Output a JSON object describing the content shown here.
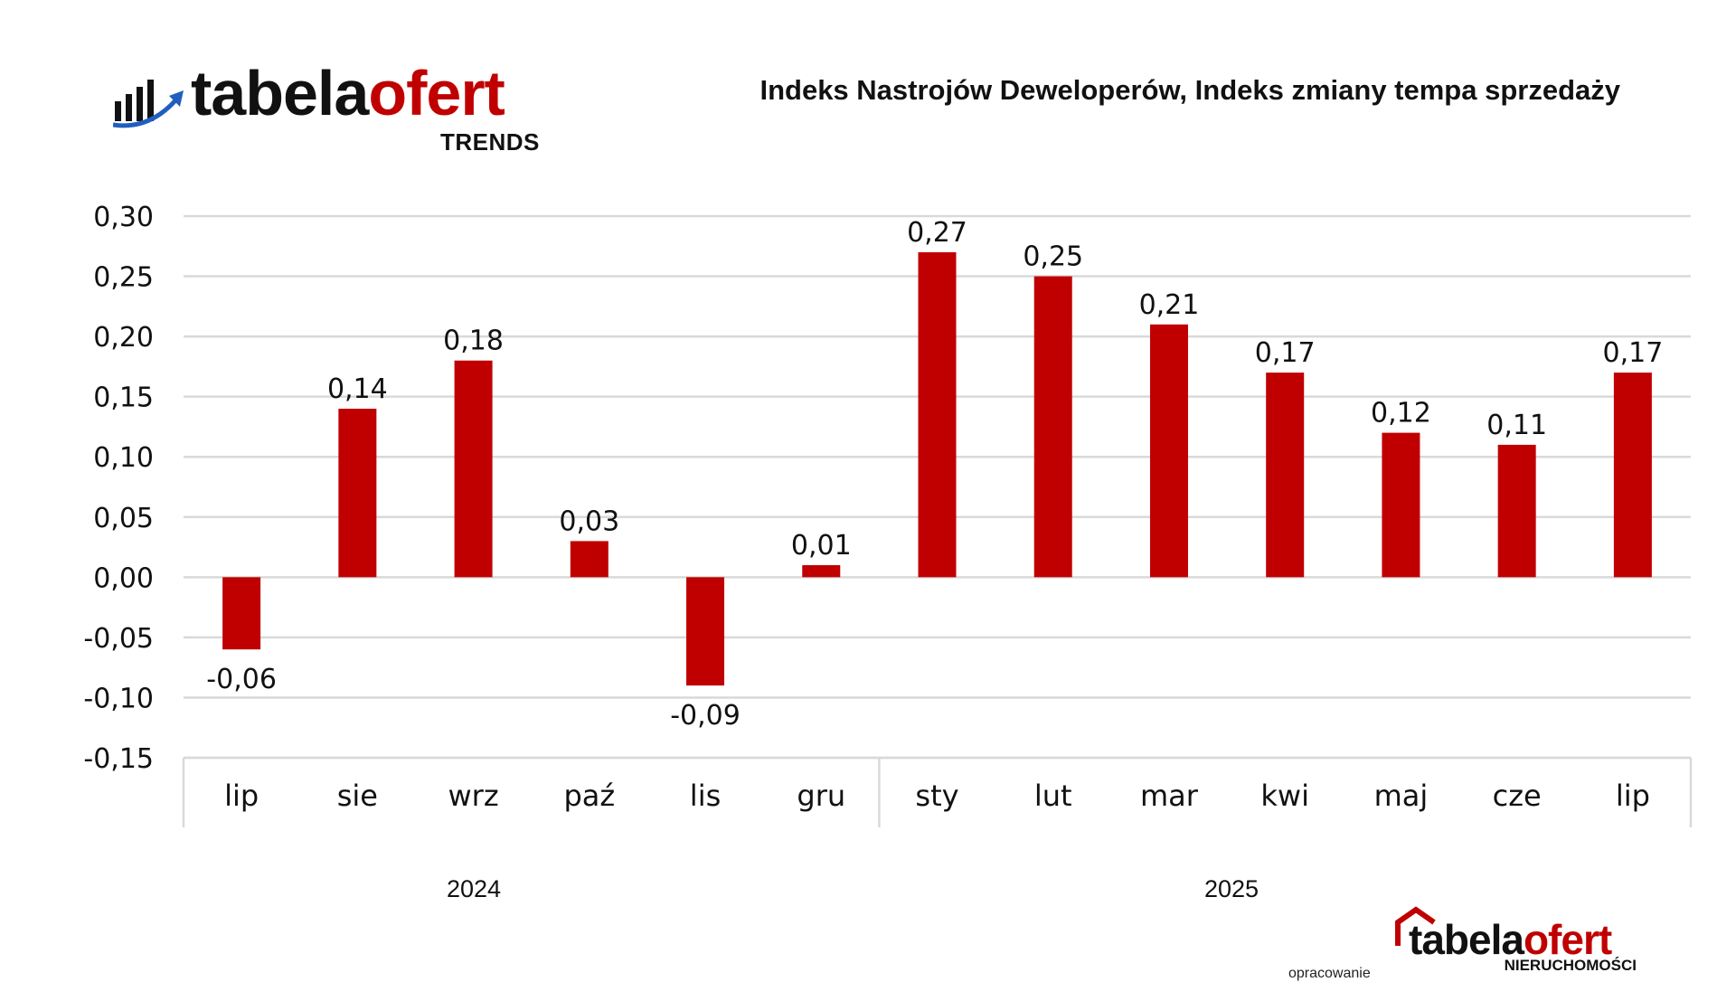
{
  "brand": {
    "word_dark": "tabela",
    "word_red": "ofert",
    "subtitle": "TRENDS",
    "accent_color": "#c00000"
  },
  "footer": {
    "credit": "opracowanie",
    "logo_word_dark": "tabela",
    "logo_word_red": "ofert",
    "logo_subtitle": "NIERUCHOMOŚCI"
  },
  "chart_data": {
    "type": "bar",
    "title": "Indeks Nastrojów Deweloperów, Indeks zmiany tempa sprzedaży",
    "categories": [
      "lip",
      "sie",
      "wrz",
      "paź",
      "lis",
      "gru",
      "sty",
      "lut",
      "mar",
      "kwi",
      "maj",
      "cze",
      "lip"
    ],
    "values": [
      -0.06,
      0.14,
      0.18,
      0.03,
      -0.09,
      0.01,
      0.27,
      0.25,
      0.21,
      0.17,
      0.12,
      0.11,
      0.17
    ],
    "value_labels": [
      "-0,06",
      "0,14",
      "0,18",
      "0,03",
      "-0,09",
      "0,01",
      "0,27",
      "0,25",
      "0,21",
      "0,17",
      "0,12",
      "0,11",
      "0,17"
    ],
    "y_ticks": [
      0.3,
      0.25,
      0.2,
      0.15,
      0.1,
      0.05,
      0.0,
      -0.05,
      -0.1,
      -0.15
    ],
    "y_tick_labels": [
      "0,30",
      "0,25",
      "0,20",
      "0,15",
      "0,10",
      "0,05",
      "0,00",
      "-0,05",
      "-0,10",
      "-0,15"
    ],
    "ylim": [
      -0.15,
      0.3
    ],
    "year_groups": [
      {
        "label": "2024",
        "count": 6
      },
      {
        "label": "2025",
        "count": 7
      }
    ],
    "bar_color": "#c00000",
    "grid": true,
    "xlabel": "",
    "ylabel": ""
  }
}
